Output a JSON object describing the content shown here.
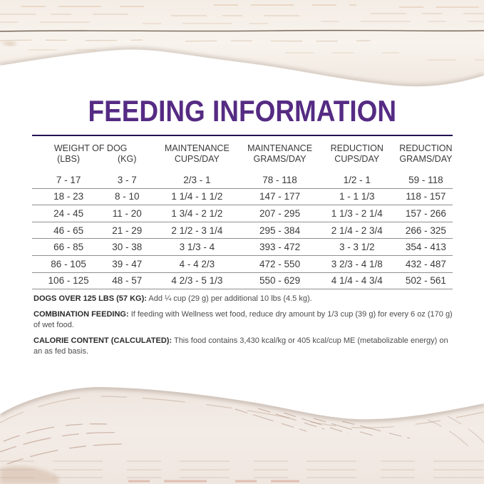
{
  "title": "FEEDING INFORMATION",
  "table": {
    "header_row1": [
      "WEIGHT OF DOG",
      "MAINTENANCE",
      "MAINTENANCE",
      "REDUCTION",
      "REDUCTION"
    ],
    "header_row2": [
      "(LBS)",
      "(KG)",
      "CUPS/DAY",
      "GRAMS/DAY",
      "CUPS/DAY",
      "GRAMS/DAY"
    ],
    "rows": [
      [
        "7 - 17",
        "3 - 7",
        "2/3 - 1",
        "78 - 118",
        "1/2 - 1",
        "59 - 118"
      ],
      [
        "18 - 23",
        "8 - 10",
        "1 1/4 - 1 1/2",
        "147 - 177",
        "1 - 1 1/3",
        "118 - 157"
      ],
      [
        "24 - 45",
        "11 - 20",
        "1 3/4 - 2 1/2",
        "207 - 295",
        "1 1/3 - 2 1/4",
        "157 - 266"
      ],
      [
        "46 - 65",
        "21 - 29",
        "2 1/2 - 3 1/4",
        "295 - 384",
        "2 1/4 - 2 3/4",
        "266 - 325"
      ],
      [
        "66 - 85",
        "30 - 38",
        "3 1/3 - 4",
        "393 - 472",
        "3 - 3 1/2",
        "354 - 413"
      ],
      [
        "86 - 105",
        "39 - 47",
        "4 - 4 2/3",
        "472 - 550",
        "3 2/3 - 4 1/8",
        "432 - 487"
      ],
      [
        "106 - 125",
        "48 - 57",
        "4 2/3 - 5 1/3",
        "550 - 629",
        "4 1/4 - 4 3/4",
        "502 - 561"
      ]
    ]
  },
  "footnotes": [
    {
      "label": "DOGS OVER 125 LBS (57 KG):",
      "text": "Add ¼ cup (29 g) per additional 10 lbs (4.5 kg)."
    },
    {
      "label": "COMBINATION FEEDING:",
      "text": "If feeding with Wellness wet food, reduce dry amount by 1/3 cup (39 g) for every 6 oz (170 g) of wet food."
    },
    {
      "label": "CALORIE CONTENT (CALCULATED):",
      "text": "This food contains 3,430 kcal/kg or 405 kcal/cup ME (metabolizable energy) on an as fed basis."
    }
  ],
  "theme": {
    "title_color": "#552b83",
    "rule_color": "#241155",
    "divider_color": "#8f8f8f",
    "table_text_color": "#3a3a3a",
    "footnote_text_color": "#4c4c4c",
    "footnote_label_color": "#2b2b2b"
  }
}
